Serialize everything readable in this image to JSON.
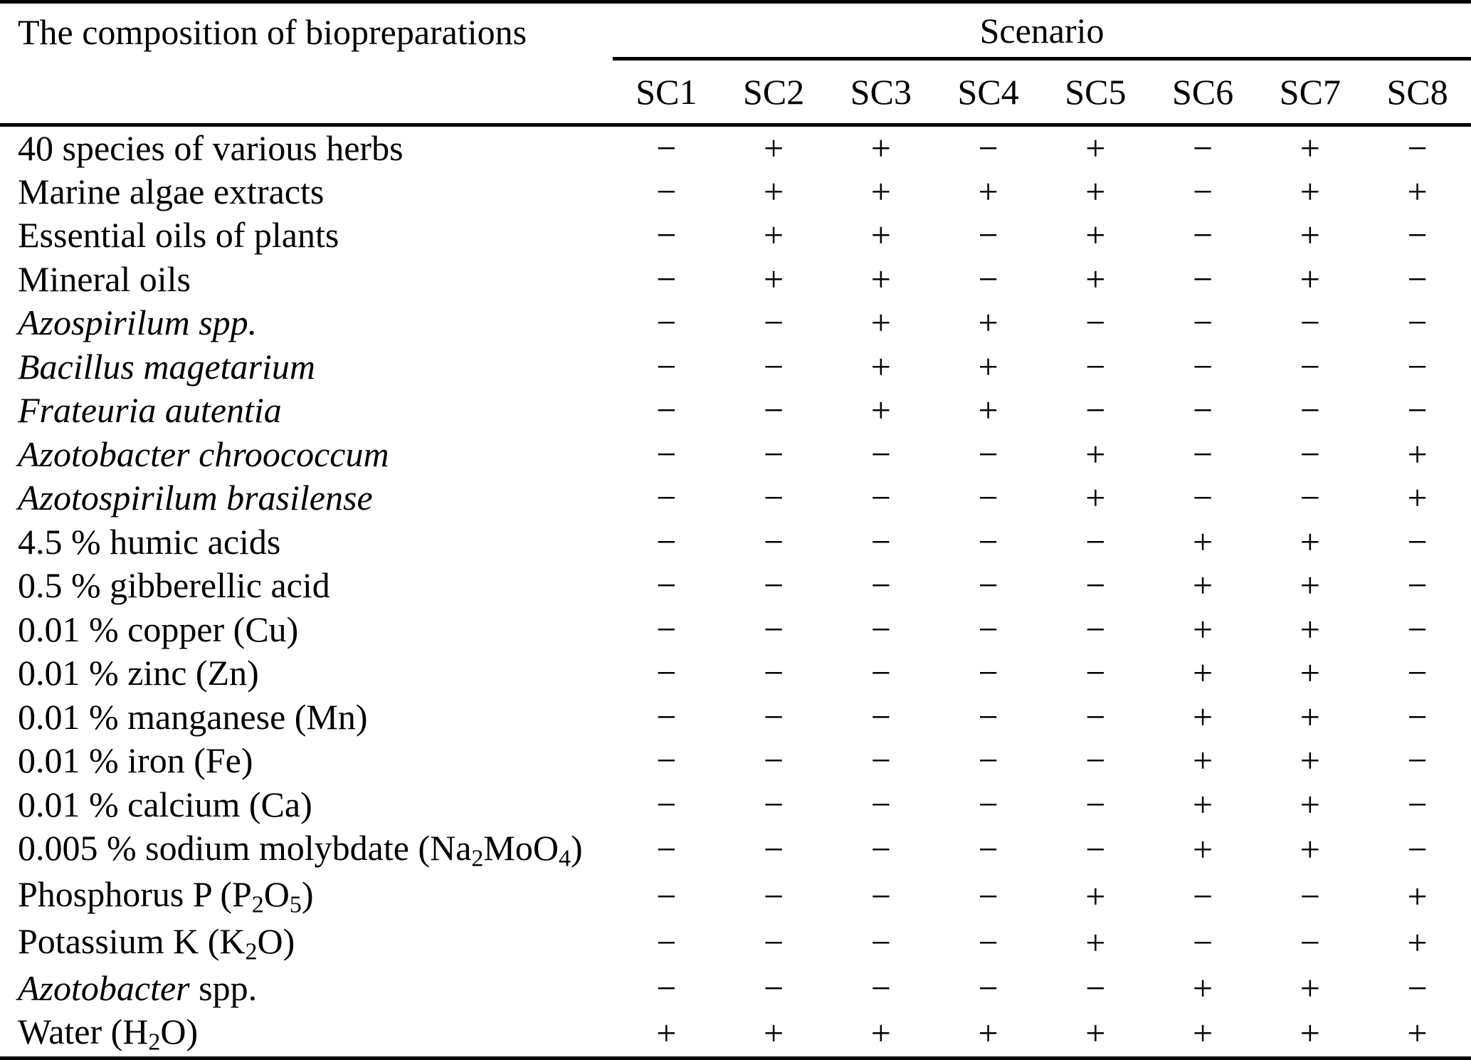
{
  "table": {
    "title": "The composition of biopreparations",
    "scenario_header": "Scenario",
    "columns": [
      "SC1",
      "SC2",
      "SC3",
      "SC4",
      "SC5",
      "SC6",
      "SC7",
      "SC8"
    ],
    "legend": {
      "present_symbol": "+",
      "absent_symbol": "−"
    },
    "colors": {
      "text": "#000000",
      "background": "#ffffff",
      "rule": "#000000"
    },
    "rows": [
      {
        "label": [
          {
            "text": "40 species of various herbs"
          }
        ],
        "values": [
          "−",
          "+",
          "+",
          "−",
          "+",
          "−",
          "+",
          "−"
        ]
      },
      {
        "label": [
          {
            "text": "Marine algae extracts"
          }
        ],
        "values": [
          "−",
          "+",
          "+",
          "+",
          "+",
          "−",
          "+",
          "+"
        ]
      },
      {
        "label": [
          {
            "text": "Essential oils of plants"
          }
        ],
        "values": [
          "−",
          "+",
          "+",
          "−",
          "+",
          "−",
          "+",
          "−"
        ]
      },
      {
        "label": [
          {
            "text": "Mineral oils"
          }
        ],
        "values": [
          "−",
          "+",
          "+",
          "−",
          "+",
          "−",
          "+",
          "−"
        ]
      },
      {
        "label": [
          {
            "text": "Azospirilum spp.",
            "italic": true
          }
        ],
        "values": [
          "−",
          "−",
          "+",
          "+",
          "−",
          "−",
          "−",
          "−"
        ]
      },
      {
        "label": [
          {
            "text": "Bacillus magetarium",
            "italic": true
          }
        ],
        "values": [
          "−",
          "−",
          "+",
          "+",
          "−",
          "−",
          "−",
          "−"
        ]
      },
      {
        "label": [
          {
            "text": "Frateuria autentia",
            "italic": true
          }
        ],
        "values": [
          "−",
          "−",
          "+",
          "+",
          "−",
          "−",
          "−",
          "−"
        ]
      },
      {
        "label": [
          {
            "text": "Azotobacter chroococcum",
            "italic": true
          }
        ],
        "values": [
          "−",
          "−",
          "−",
          "−",
          "+",
          "−",
          "−",
          "+"
        ]
      },
      {
        "label": [
          {
            "text": "Azotospirilum brasilense",
            "italic": true
          }
        ],
        "values": [
          "−",
          "−",
          "−",
          "−",
          "+",
          "−",
          "−",
          "+"
        ]
      },
      {
        "label": [
          {
            "text": "4.5 % humic acids"
          }
        ],
        "values": [
          "−",
          "−",
          "−",
          "−",
          "−",
          "+",
          "+",
          "−"
        ]
      },
      {
        "label": [
          {
            "text": "0.5 % gibberellic acid"
          }
        ],
        "values": [
          "−",
          "−",
          "−",
          "−",
          "−",
          "+",
          "+",
          "−"
        ]
      },
      {
        "label": [
          {
            "text": "0.01 % copper (Cu)"
          }
        ],
        "values": [
          "−",
          "−",
          "−",
          "−",
          "−",
          "+",
          "+",
          "−"
        ]
      },
      {
        "label": [
          {
            "text": "0.01 % zinc (Zn)"
          }
        ],
        "values": [
          "−",
          "−",
          "−",
          "−",
          "−",
          "+",
          "+",
          "−"
        ]
      },
      {
        "label": [
          {
            "text": "0.01 % manganese (Mn)"
          }
        ],
        "values": [
          "−",
          "−",
          "−",
          "−",
          "−",
          "+",
          "+",
          "−"
        ]
      },
      {
        "label": [
          {
            "text": "0.01 % iron (Fe)"
          }
        ],
        "values": [
          "−",
          "−",
          "−",
          "−",
          "−",
          "+",
          "+",
          "−"
        ]
      },
      {
        "label": [
          {
            "text": "0.01 % calcium (Ca)"
          }
        ],
        "values": [
          "−",
          "−",
          "−",
          "−",
          "−",
          "+",
          "+",
          "−"
        ]
      },
      {
        "label": [
          {
            "text": "0.005 % sodium molybdate (Na"
          },
          {
            "text": "2",
            "sub": true
          },
          {
            "text": "MoO"
          },
          {
            "text": "4",
            "sub": true
          },
          {
            "text": ")"
          }
        ],
        "values": [
          "−",
          "−",
          "−",
          "−",
          "−",
          "+",
          "+",
          "−"
        ]
      },
      {
        "label": [
          {
            "text": "Phosphorus P (P"
          },
          {
            "text": "2",
            "sub": true
          },
          {
            "text": "O"
          },
          {
            "text": "5",
            "sub": true
          },
          {
            "text": ")"
          }
        ],
        "values": [
          "−",
          "−",
          "−",
          "−",
          "+",
          "−",
          "−",
          "+"
        ]
      },
      {
        "label": [
          {
            "text": "Potassium K (K"
          },
          {
            "text": "2",
            "sub": true
          },
          {
            "text": "O)"
          }
        ],
        "values": [
          "−",
          "−",
          "−",
          "−",
          "+",
          "−",
          "−",
          "+"
        ]
      },
      {
        "label": [
          {
            "text": "Azotobacter",
            "italic": true
          },
          {
            "text": " spp."
          }
        ],
        "values": [
          "−",
          "−",
          "−",
          "−",
          "−",
          "+",
          "+",
          "−"
        ]
      },
      {
        "label": [
          {
            "text": "Water (H"
          },
          {
            "text": "2",
            "sub": true
          },
          {
            "text": "O)"
          }
        ],
        "values": [
          "+",
          "+",
          "+",
          "+",
          "+",
          "+",
          "+",
          "+"
        ]
      }
    ]
  }
}
